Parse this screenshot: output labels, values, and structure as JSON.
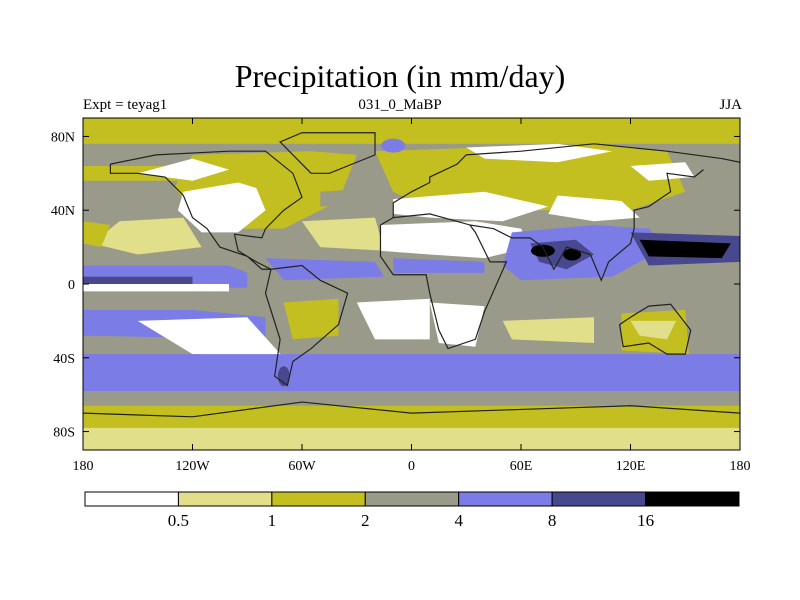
{
  "header": {
    "title": "Precipitation (in mm/day)",
    "left_label": "Expt = teyag1",
    "center_label": "031_0_MaBP",
    "right_label": "JJA"
  },
  "axes": {
    "x_ticks": [
      {
        "lon": -180,
        "label": "180"
      },
      {
        "lon": -120,
        "label": "120W"
      },
      {
        "lon": -60,
        "label": "60W"
      },
      {
        "lon": 0,
        "label": "0"
      },
      {
        "lon": 60,
        "label": "60E"
      },
      {
        "lon": 120,
        "label": "120E"
      },
      {
        "lon": 180,
        "label": "180"
      }
    ],
    "y_ticks": [
      {
        "lat": 80,
        "label": "80N"
      },
      {
        "lat": 40,
        "label": "40N"
      },
      {
        "lat": 0,
        "label": "0"
      },
      {
        "lat": -40,
        "label": "40S"
      },
      {
        "lat": -80,
        "label": "80S"
      }
    ],
    "lon_range": [
      -180,
      180
    ],
    "lat_range": [
      -90,
      90
    ]
  },
  "colorbar": {
    "colors": [
      "#ffffff",
      "#e2df8a",
      "#c4bf20",
      "#9a9a8a",
      "#7c7ce6",
      "#48488e",
      "#000000"
    ],
    "labels": [
      "0.5",
      "1",
      "2",
      "4",
      "8",
      "16"
    ]
  },
  "map_palette": {
    "ocean_base": "#9a9a8a",
    "very_dry": "#ffffff",
    "dry": "#e2df8a",
    "moderate": "#c4bf20",
    "wet": "#7c7ce6",
    "very_wet": "#48488e",
    "extreme": "#000000",
    "coast": "#222222"
  }
}
